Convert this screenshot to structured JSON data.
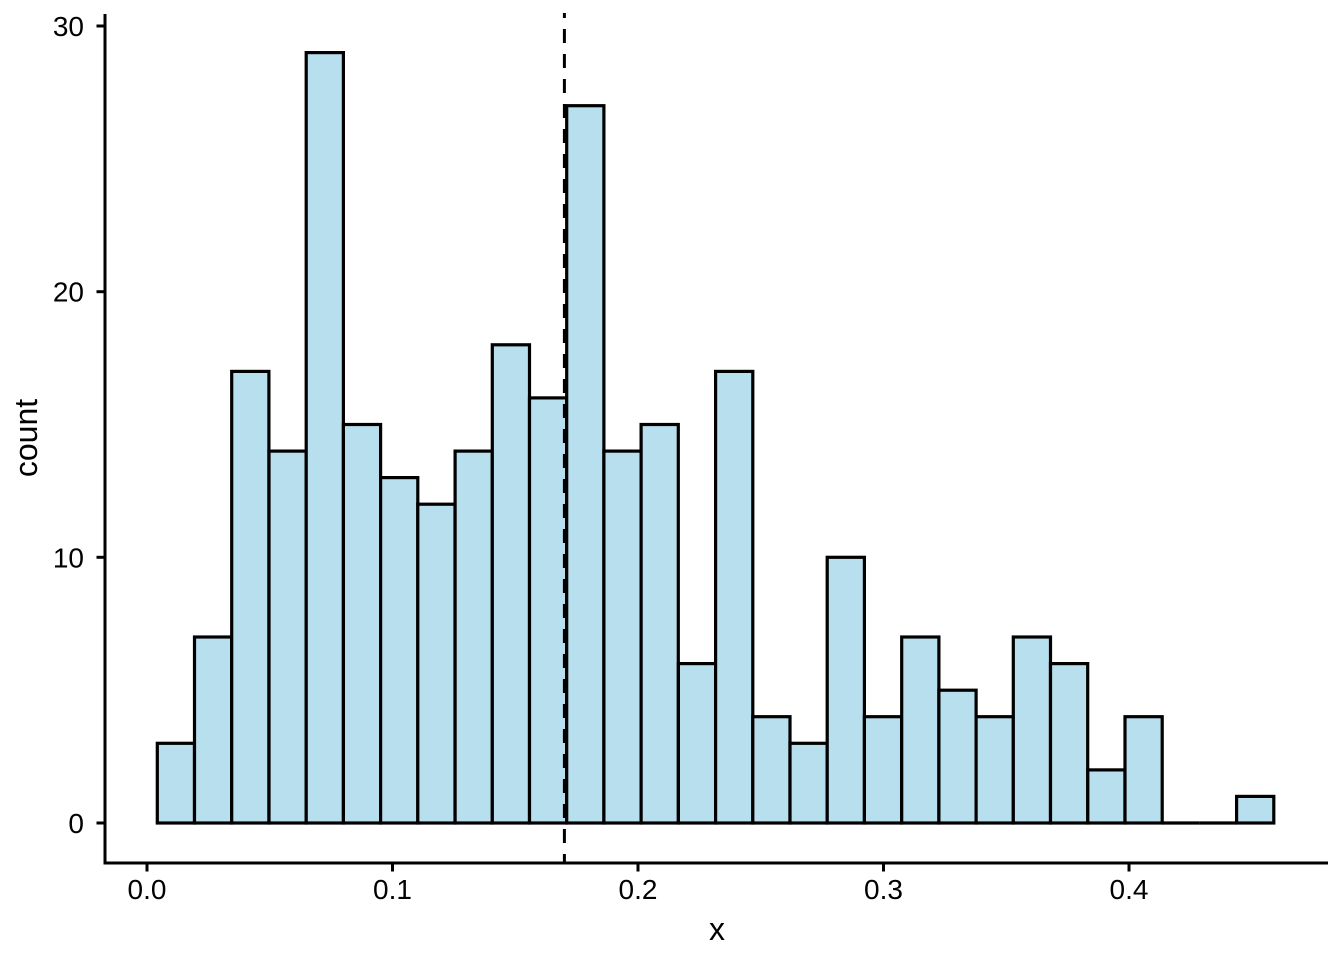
{
  "chart_data": {
    "type": "bar",
    "subtype": "histogram",
    "title": "",
    "xlabel": "x",
    "ylabel": "count",
    "bin_start": 0.0042,
    "bin_width": 0.01516,
    "counts": [
      3,
      7,
      17,
      14,
      29,
      15,
      13,
      12,
      14,
      18,
      16,
      27,
      14,
      15,
      6,
      17,
      4,
      3,
      10,
      4,
      7,
      5,
      4,
      7,
      6,
      2,
      4,
      0,
      0,
      1
    ],
    "x_tick_labels": [
      "0.0",
      "0.1",
      "0.2",
      "0.3",
      "0.4"
    ],
    "x_tick_values": [
      0.0,
      0.1,
      0.2,
      0.3,
      0.4
    ],
    "y_tick_labels": [
      "0",
      "10",
      "20",
      "30"
    ],
    "y_tick_values": [
      0,
      10,
      20,
      30
    ],
    "xlim": [
      -0.0175,
      0.481
    ],
    "ylim": [
      -1.5,
      30.5
    ],
    "grid": false,
    "legend": false,
    "vline": {
      "x": 0.17,
      "style": "dashed",
      "color": "#000000"
    },
    "bar_fill": "#b8dfee",
    "bar_stroke": "#000000",
    "axis_color": "#000000"
  }
}
